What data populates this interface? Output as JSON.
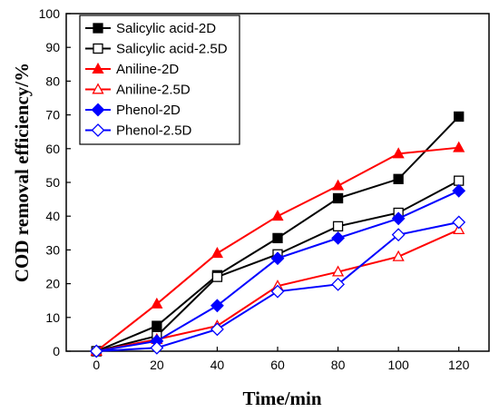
{
  "chart_data": {
    "type": "line",
    "title": "",
    "xlabel": "Time/min",
    "ylabel": "COD removal efficiency/%",
    "xlim": [
      -10,
      130
    ],
    "ylim": [
      0,
      100
    ],
    "xticks": [
      0,
      20,
      40,
      60,
      80,
      100,
      120
    ],
    "yticks": [
      0,
      10,
      20,
      30,
      40,
      50,
      60,
      70,
      80,
      90,
      100
    ],
    "grid": false,
    "legend_position": "top-left",
    "series": [
      {
        "name": "Salicylic acid-2D",
        "x": [
          0,
          20,
          40,
          60,
          80,
          100,
          120
        ],
        "y": [
          0,
          7.5,
          22.5,
          33.5,
          45.3,
          51,
          69.5
        ],
        "color": "#000000",
        "marker": "square",
        "filled": true
      },
      {
        "name": "Salicylic acid-2.5D",
        "x": [
          0,
          20,
          40,
          60,
          80,
          100,
          120
        ],
        "y": [
          0,
          4.5,
          22,
          28.7,
          37,
          41,
          50.5
        ],
        "color": "#000000",
        "marker": "square",
        "filled": false
      },
      {
        "name": "Aniline-2D",
        "x": [
          0,
          20,
          40,
          60,
          80,
          100,
          120
        ],
        "y": [
          0,
          14,
          29,
          40,
          49,
          58.5,
          60.3
        ],
        "color": "#ff0000",
        "marker": "triangle",
        "filled": true
      },
      {
        "name": "Aniline-2.5D",
        "x": [
          0,
          20,
          40,
          60,
          80,
          100,
          120
        ],
        "y": [
          0,
          3.5,
          7.5,
          19.3,
          23.5,
          28,
          36
        ],
        "color": "#ff0000",
        "marker": "triangle",
        "filled": false
      },
      {
        "name": "Phenol-2D",
        "x": [
          0,
          20,
          40,
          60,
          80,
          100,
          120
        ],
        "y": [
          0,
          3,
          13.5,
          27.5,
          33.5,
          39.3,
          47.5
        ],
        "color": "#0000ff",
        "marker": "diamond",
        "filled": true
      },
      {
        "name": "Phenol-2.5D",
        "x": [
          0,
          20,
          40,
          60,
          80,
          100,
          120
        ],
        "y": [
          0,
          1,
          6.5,
          17.7,
          19.8,
          34.5,
          38.2
        ],
        "color": "#0000ff",
        "marker": "diamond",
        "filled": false
      }
    ]
  }
}
